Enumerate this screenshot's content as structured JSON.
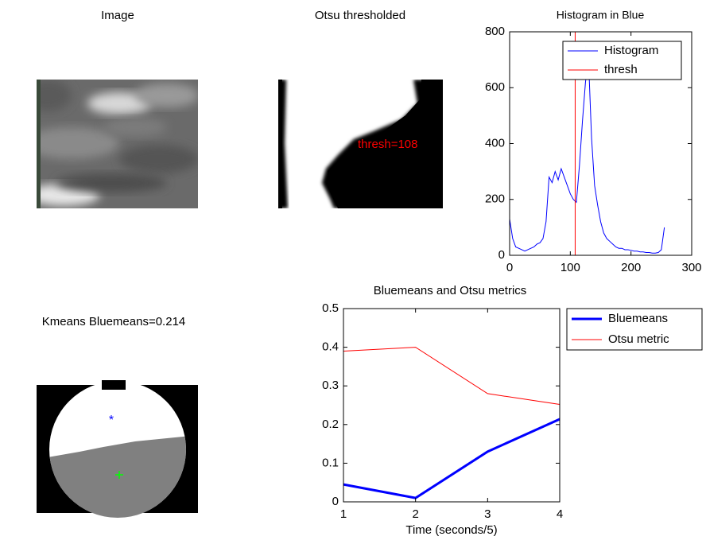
{
  "chart_data": [
    {
      "type": "image",
      "title": "Image"
    },
    {
      "type": "image",
      "title": "Otsu thresholded",
      "annotation": "thresh=108"
    },
    {
      "type": "line",
      "title": "Histogram in Blue",
      "x": [
        0,
        5,
        10,
        15,
        20,
        25,
        30,
        35,
        40,
        45,
        50,
        55,
        60,
        65,
        70,
        75,
        80,
        85,
        90,
        95,
        100,
        105,
        110,
        115,
        120,
        125,
        130,
        135,
        140,
        145,
        150,
        155,
        160,
        165,
        170,
        175,
        180,
        185,
        190,
        195,
        200,
        205,
        210,
        215,
        220,
        225,
        230,
        235,
        240,
        245,
        250,
        255
      ],
      "series": [
        {
          "name": "Histogram",
          "color": "#0000ff",
          "line_width": 1,
          "values": [
            130,
            60,
            30,
            25,
            20,
            15,
            20,
            25,
            30,
            40,
            45,
            60,
            120,
            280,
            260,
            300,
            270,
            310,
            280,
            250,
            220,
            200,
            190,
            320,
            480,
            620,
            700,
            420,
            250,
            180,
            120,
            80,
            60,
            50,
            40,
            30,
            25,
            25,
            20,
            20,
            18,
            15,
            15,
            12,
            12,
            10,
            10,
            8,
            8,
            10,
            20,
            100
          ]
        },
        {
          "name": "thresh",
          "color": "#ff0000",
          "line_width": 1,
          "x": [
            108,
            108
          ],
          "values": [
            0,
            800
          ]
        }
      ],
      "xlim": [
        0,
        300
      ],
      "xticks": [
        0,
        100,
        200,
        300
      ],
      "ylim": [
        0,
        800
      ],
      "yticks": [
        0,
        200,
        400,
        600,
        800
      ],
      "legend": "upper-right"
    },
    {
      "type": "image",
      "title": "Kmeans Bluemeans=0.214"
    },
    {
      "type": "line",
      "title": "Bluemeans and Otsu metrics",
      "xlabel": "Time (seconds/5)",
      "x": [
        1,
        2,
        3,
        4
      ],
      "series": [
        {
          "name": "Bluemeans",
          "color": "#0000ff",
          "line_width": 3,
          "values": [
            0.045,
            0.01,
            0.13,
            0.214
          ]
        },
        {
          "name": "Otsu metric",
          "color": "#ff0000",
          "line_width": 1,
          "values": [
            0.39,
            0.4,
            0.28,
            0.252
          ]
        }
      ],
      "xlim": [
        1,
        4
      ],
      "xticks": [
        1,
        2,
        3,
        4
      ],
      "ylim": [
        0,
        0.5
      ],
      "yticks": [
        0,
        0.1,
        0.2,
        0.3,
        0.4,
        0.5
      ],
      "legend": "outside-right"
    }
  ]
}
